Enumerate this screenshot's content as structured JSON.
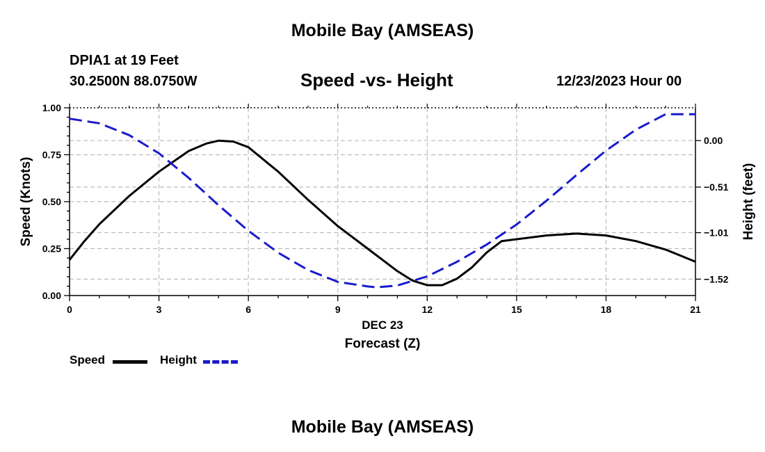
{
  "header": {
    "title": "Mobile Bay (AMSEAS)",
    "station": "DPIA1 at 19 Feet",
    "coords": "30.2500N  88.0750W",
    "chart_title": "Speed -vs- Height",
    "datetime": "12/23/2023 Hour 00"
  },
  "footer": {
    "title": "Mobile Bay (AMSEAS)"
  },
  "legend": {
    "speed_label": "Speed",
    "height_label": "Height"
  },
  "colors": {
    "speed": "#000000",
    "height": "#1a1acc",
    "grid": "#bbbbbb"
  },
  "chart_data": {
    "type": "line",
    "title": "Speed -vs- Height",
    "xlabel": "Forecast (Z)",
    "xsublabel": "DEC 23",
    "ylabel": "Speed (Knots)",
    "y2label": "Height (feet)",
    "xlim": [
      0,
      21
    ],
    "ylim": [
      0,
      1.0
    ],
    "y2lim": [
      -1.7,
      0.36
    ],
    "x_ticks": [
      0,
      3,
      6,
      9,
      12,
      15,
      18,
      21
    ],
    "x_tick_labels": [
      "0",
      "3",
      "6",
      "9",
      "12",
      "15",
      "18",
      "21"
    ],
    "y_ticks": [
      0,
      0.25,
      0.5,
      0.75,
      1.0
    ],
    "y_tick_labels": [
      "0.00",
      "0.25",
      "0.50",
      "0.75",
      "1.00"
    ],
    "y2_ticks": [
      -1.52,
      -1.01,
      -0.51,
      0.0
    ],
    "y2_tick_labels": [
      "−1.52",
      "−1.01",
      "−0.51",
      "0.00"
    ],
    "grid": true,
    "series": [
      {
        "name": "Speed",
        "axis": "left",
        "style": "solid",
        "x": [
          0,
          0.5,
          1,
          2,
          3,
          4,
          4.6,
          5,
          5.5,
          6,
          7,
          8,
          9,
          10,
          11,
          11.5,
          12,
          12.5,
          13,
          13.5,
          14,
          14.5,
          15,
          16,
          17,
          18,
          19,
          20,
          21
        ],
        "values": [
          0.19,
          0.29,
          0.38,
          0.53,
          0.66,
          0.77,
          0.81,
          0.825,
          0.82,
          0.79,
          0.66,
          0.51,
          0.37,
          0.25,
          0.13,
          0.08,
          0.055,
          0.055,
          0.09,
          0.15,
          0.23,
          0.29,
          0.3,
          0.32,
          0.33,
          0.32,
          0.29,
          0.245,
          0.18
        ]
      },
      {
        "name": "Height",
        "axis": "right",
        "style": "dashed",
        "x": [
          0,
          1,
          2,
          3,
          4,
          5,
          6,
          7,
          8,
          9,
          10,
          10.3,
          11,
          12,
          13,
          14,
          15,
          16,
          17,
          18,
          19,
          20,
          21
        ],
        "values": [
          0.24,
          0.19,
          0.06,
          -0.14,
          -0.41,
          -0.71,
          -0.99,
          -1.23,
          -1.42,
          -1.55,
          -1.6,
          -1.61,
          -1.59,
          -1.49,
          -1.33,
          -1.14,
          -0.92,
          -0.66,
          -0.38,
          -0.11,
          0.12,
          0.29,
          0.29
        ]
      }
    ]
  }
}
